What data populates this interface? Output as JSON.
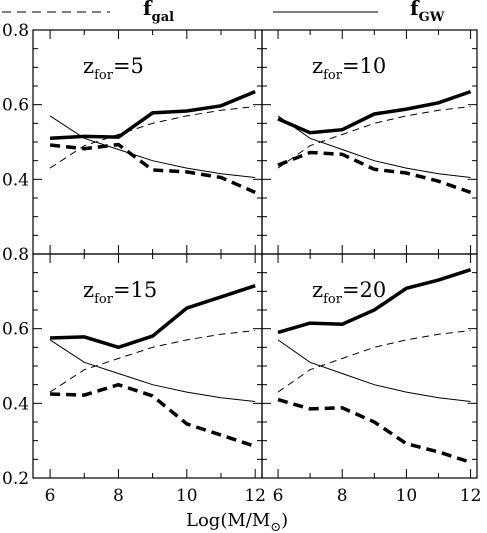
{
  "chart_data": {
    "type": "line",
    "xlabel": "Log(M/M",
    "xlabel_close": ")",
    "xlim": [
      5.5,
      12.2
    ],
    "ylim": [
      0.2,
      0.8
    ],
    "x_ticks": [
      "6",
      "8",
      "10",
      "12"
    ],
    "y_ticks": [
      "0.2",
      "0.4",
      "0.6",
      "0.8"
    ],
    "legend": {
      "dashed": {
        "main": "f",
        "sub": "gal"
      },
      "solid": {
        "main": "f",
        "sub": "GW"
      }
    },
    "x": [
      6,
      7,
      8,
      9,
      10,
      11,
      12
    ],
    "reference_dashed_fgal": [
      0.43,
      0.49,
      0.52,
      0.55,
      0.57,
      0.585,
      0.595
    ],
    "reference_solid_fgw": [
      0.57,
      0.51,
      0.48,
      0.45,
      0.43,
      0.415,
      0.405
    ],
    "panels": [
      {
        "label_main": "z",
        "label_sub": "for",
        "label_val": "=5",
        "thick_solid": [
          0.51,
          0.515,
          0.513,
          0.578,
          0.583,
          0.597,
          0.635
        ],
        "thick_dashed": [
          0.492,
          0.482,
          0.493,
          0.425,
          0.42,
          0.405,
          0.365
        ]
      },
      {
        "label_main": "z",
        "label_sub": "for",
        "label_val": "=10",
        "thick_solid": [
          0.562,
          0.525,
          0.533,
          0.575,
          0.588,
          0.605,
          0.635
        ],
        "thick_dashed": [
          0.438,
          0.472,
          0.467,
          0.427,
          0.417,
          0.395,
          0.365
        ]
      },
      {
        "label_main": "z",
        "label_sub": "for",
        "label_val": "=15",
        "thick_solid": [
          0.575,
          0.578,
          0.55,
          0.58,
          0.655,
          0.685,
          0.715
        ],
        "thick_dashed": [
          0.425,
          0.422,
          0.45,
          0.42,
          0.345,
          0.315,
          0.285
        ]
      },
      {
        "label_main": "z",
        "label_sub": "for",
        "label_val": "=20",
        "thick_solid": [
          0.59,
          0.615,
          0.612,
          0.65,
          0.708,
          0.73,
          0.758
        ],
        "thick_dashed": [
          0.41,
          0.385,
          0.388,
          0.35,
          0.292,
          0.27,
          0.242
        ]
      }
    ]
  }
}
